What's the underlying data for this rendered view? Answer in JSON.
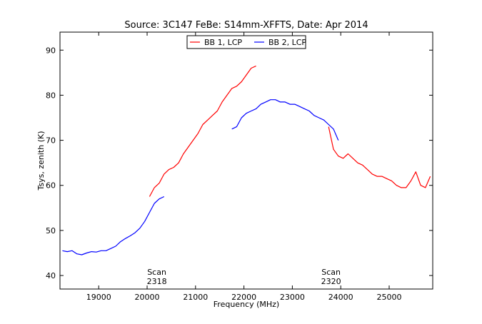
{
  "chart_data": {
    "type": "line",
    "title": "Source: 3C147 FeBe: S14mm-XFFTS, Date: Apr 2014",
    "xlabel": "Frequency (MHz)",
    "ylabel": "Tsys, zenith (K)",
    "xlim": [
      18200,
      25900
    ],
    "ylim": [
      37,
      94
    ],
    "xticks": [
      19000,
      20000,
      21000,
      22000,
      23000,
      24000,
      25000
    ],
    "yticks": [
      40,
      50,
      60,
      70,
      80,
      90
    ],
    "grid": false,
    "legend_position": "top-center",
    "series": [
      {
        "name": "BB 1, LCP",
        "color": "#ff0000",
        "x": [
          20050,
          20150,
          20250,
          20350,
          20450,
          20550,
          20650,
          20750,
          20850,
          20950,
          21050,
          21150,
          21250,
          21350,
          21450,
          21550,
          21650,
          21750,
          21850,
          21950,
          22050,
          22150,
          22250
        ],
        "y": [
          57.5,
          59.5,
          60.5,
          62.5,
          63.5,
          64,
          65,
          67,
          68.5,
          70,
          71.5,
          73.5,
          74.5,
          75.5,
          76.5,
          78.5,
          80,
          81.5,
          82,
          83,
          84.5,
          86,
          86.5
        ]
      },
      {
        "name": "BB 1, LCP",
        "color": "#ff0000",
        "x": [
          23750,
          23850,
          23950,
          24050,
          24150,
          24250,
          24350,
          24450,
          24550,
          24650,
          24750,
          24850,
          24950,
          25050,
          25150,
          25250,
          25350,
          25450,
          25550,
          25650,
          25750,
          25850
        ],
        "y": [
          73,
          68,
          66.5,
          66,
          67,
          66,
          65,
          64.5,
          63.5,
          62.5,
          62,
          62,
          61.5,
          61,
          60,
          59.5,
          59.5,
          61,
          63,
          60,
          59.5,
          62
        ]
      },
      {
        "name": "BB 2, LCP",
        "color": "#0000ff",
        "x": [
          18250,
          18350,
          18450,
          18550,
          18650,
          18750,
          18850,
          18950,
          19050,
          19150,
          19250,
          19350,
          19450,
          19550,
          19650,
          19750,
          19850,
          19950,
          20050,
          20150,
          20250,
          20350
        ],
        "y": [
          45.5,
          45.3,
          45.5,
          44.8,
          44.6,
          45,
          45.3,
          45.2,
          45.5,
          45.5,
          46,
          46.5,
          47.5,
          48.2,
          48.8,
          49.5,
          50.5,
          52,
          54,
          56,
          57,
          57.5
        ]
      },
      {
        "name": "BB 2, LCP",
        "color": "#0000ff",
        "x": [
          21750,
          21850,
          21950,
          22050,
          22150,
          22250,
          22350,
          22450,
          22550,
          22650,
          22750,
          22850,
          22950,
          23050,
          23150,
          23250,
          23350,
          23450,
          23550,
          23650,
          23750,
          23850,
          23950
        ],
        "y": [
          72.5,
          73,
          75,
          76,
          76.5,
          77,
          78,
          78.5,
          79,
          79,
          78.5,
          78.5,
          78,
          78,
          77.5,
          77,
          76.5,
          75.5,
          75,
          74.5,
          73.5,
          72.5,
          70
        ]
      }
    ],
    "annotations": [
      {
        "line1": "Scan",
        "line2": "2318",
        "x": 20200
      },
      {
        "line1": "Scan",
        "line2": "2320",
        "x": 23800
      }
    ]
  }
}
